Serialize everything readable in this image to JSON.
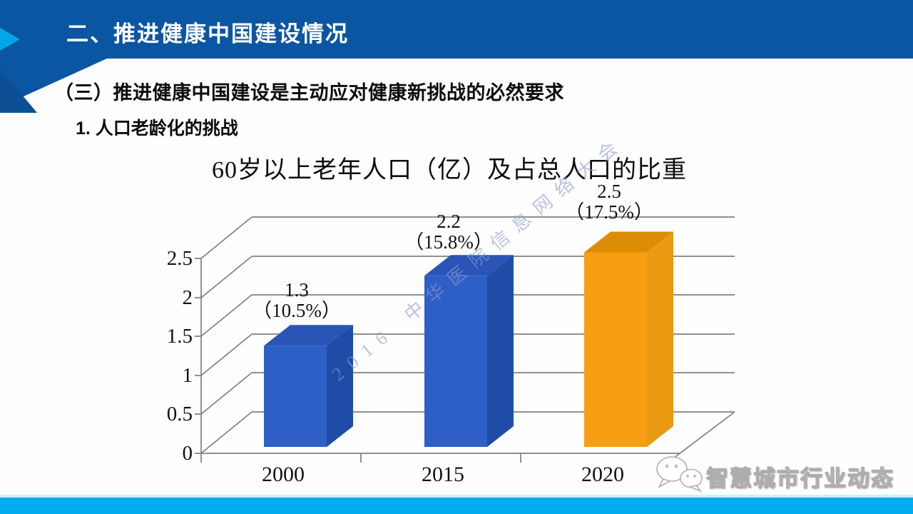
{
  "header": {
    "title": "二、推进健康中国建设情况"
  },
  "subtitle": "（三）推进健康中国建设是主动应对健康新挑战的必然要求",
  "section_heading": "1. 人口老龄化的挑战",
  "watermark": "2016 中华医院信息网络大会",
  "footer": {
    "brand": "智慧城市行业动态"
  },
  "colors": {
    "header_bg": "#0b56a2",
    "accent_cyan": "#00a7e8",
    "footer_bar": "#00aeef",
    "gridline": "#7f7f7f",
    "watermark": "#8e98d6"
  },
  "chart_data": {
    "type": "bar",
    "style_3d": true,
    "title": "60岁以上老年人口（亿）及占总人口的比重",
    "categories": [
      "2000",
      "2015",
      "2020"
    ],
    "series": [
      {
        "name": "60岁以上老年人口（亿）",
        "values": [
          1.3,
          2.2,
          2.5
        ]
      }
    ],
    "percent_of_total_population": [
      10.5,
      15.8,
      17.5
    ],
    "value_labels": [
      "1.3",
      "2.2",
      "2.5"
    ],
    "percent_labels": [
      "（10.5%）",
      "（15.8%）",
      "（17.5%）"
    ],
    "yticks": [
      "2.5",
      "2",
      "1.5",
      "1",
      "0.5",
      "0"
    ],
    "ylim": [
      0,
      2.5
    ],
    "grid": true,
    "legend": "none",
    "bar_facets": [
      {
        "front": "#2e5fc6",
        "top": "#2a55b6",
        "side": "#1e4ca6"
      },
      {
        "front": "#2e5fc6",
        "top": "#2a55b6",
        "side": "#1e4ca6"
      },
      {
        "front": "#f89e12",
        "top": "#dd8d05",
        "side": "#ea9a10"
      }
    ]
  }
}
